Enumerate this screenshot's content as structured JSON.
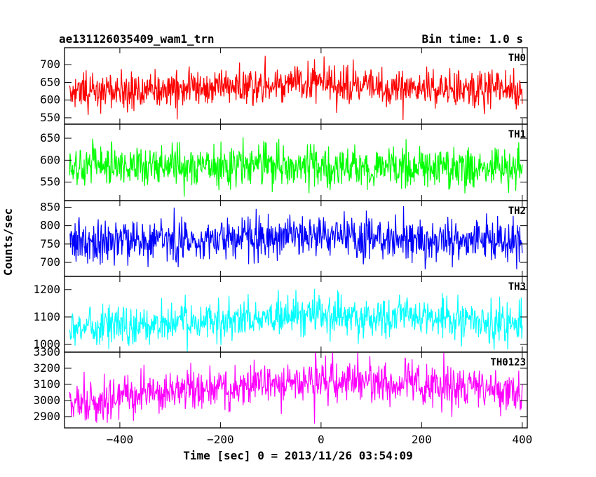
{
  "header": {
    "title": "ae131126035409_wam1_trn",
    "bin_time": "Bin time: 1.0 s"
  },
  "chart_data": {
    "type": "line",
    "title": "ae131126035409_wam1_trn",
    "xlabel": "Time [sec] 0 = 2013/11/26 03:54:09",
    "ylabel": "Counts/sec",
    "xlim": [
      -510,
      410
    ],
    "x_ticks": [
      -400,
      -200,
      0,
      200,
      400
    ],
    "x_tick_labels": [
      "−400",
      "−200",
      "0",
      "200",
      "400"
    ],
    "x_start": -500,
    "x_end": 400,
    "bin_seconds": 1.0,
    "panels": [
      {
        "name": "TH0",
        "color": "#ff0000",
        "ylim": [
          532,
          748
        ],
        "y_ticks": [
          550,
          600,
          650,
          700
        ],
        "y_tick_labels": [
          "550",
          "600",
          "650",
          "700"
        ],
        "mean_profile": [
          [
            -500,
            625
          ],
          [
            -350,
            630
          ],
          [
            -200,
            638
          ],
          [
            -100,
            645
          ],
          [
            0,
            648
          ],
          [
            100,
            640
          ],
          [
            200,
            635
          ],
          [
            300,
            632
          ],
          [
            400,
            630
          ]
        ],
        "noise_sd": 26
      },
      {
        "name": "TH1",
        "color": "#00ff00",
        "ylim": [
          508,
          682
        ],
        "y_ticks": [
          550,
          600,
          650
        ],
        "y_tick_labels": [
          "550",
          "600",
          "650"
        ],
        "mean_profile": [
          [
            -500,
            582
          ],
          [
            -300,
            590
          ],
          [
            -100,
            588
          ],
          [
            0,
            585
          ],
          [
            200,
            583
          ],
          [
            400,
            578
          ]
        ],
        "noise_sd": 24
      },
      {
        "name": "TH2",
        "color": "#0000ff",
        "ylim": [
          662,
          868
        ],
        "y_ticks": [
          700,
          750,
          800,
          850
        ],
        "y_tick_labels": [
          "700",
          "750",
          "800",
          "850"
        ],
        "mean_profile": [
          [
            -500,
            757
          ],
          [
            -300,
            762
          ],
          [
            -100,
            768
          ],
          [
            0,
            770
          ],
          [
            200,
            765
          ],
          [
            400,
            758
          ]
        ],
        "noise_sd": 30
      },
      {
        "name": "TH3",
        "color": "#00ffff",
        "ylim": [
          972,
          1248
        ],
        "y_ticks": [
          1000,
          1100,
          1200
        ],
        "y_tick_labels": [
          "1000",
          "1100",
          "1200"
        ],
        "mean_profile": [
          [
            -500,
            1060
          ],
          [
            -300,
            1080
          ],
          [
            -150,
            1095
          ],
          [
            0,
            1100
          ],
          [
            150,
            1100
          ],
          [
            300,
            1085
          ],
          [
            400,
            1070
          ]
        ],
        "noise_sd": 35
      },
      {
        "name": "TH0123",
        "color": "#ff00ff",
        "ylim": [
          2830,
          3300
        ],
        "y_ticks": [
          2900,
          3000,
          3100,
          3200,
          3300
        ],
        "y_tick_labels": [
          "2900",
          "3000",
          "3100",
          "3200",
          "3300"
        ],
        "mean_profile": [
          [
            -500,
            2985
          ],
          [
            -300,
            3050
          ],
          [
            -150,
            3100
          ],
          [
            0,
            3120
          ],
          [
            150,
            3110
          ],
          [
            300,
            3070
          ],
          [
            400,
            3040
          ]
        ],
        "noise_sd": 65
      }
    ]
  }
}
